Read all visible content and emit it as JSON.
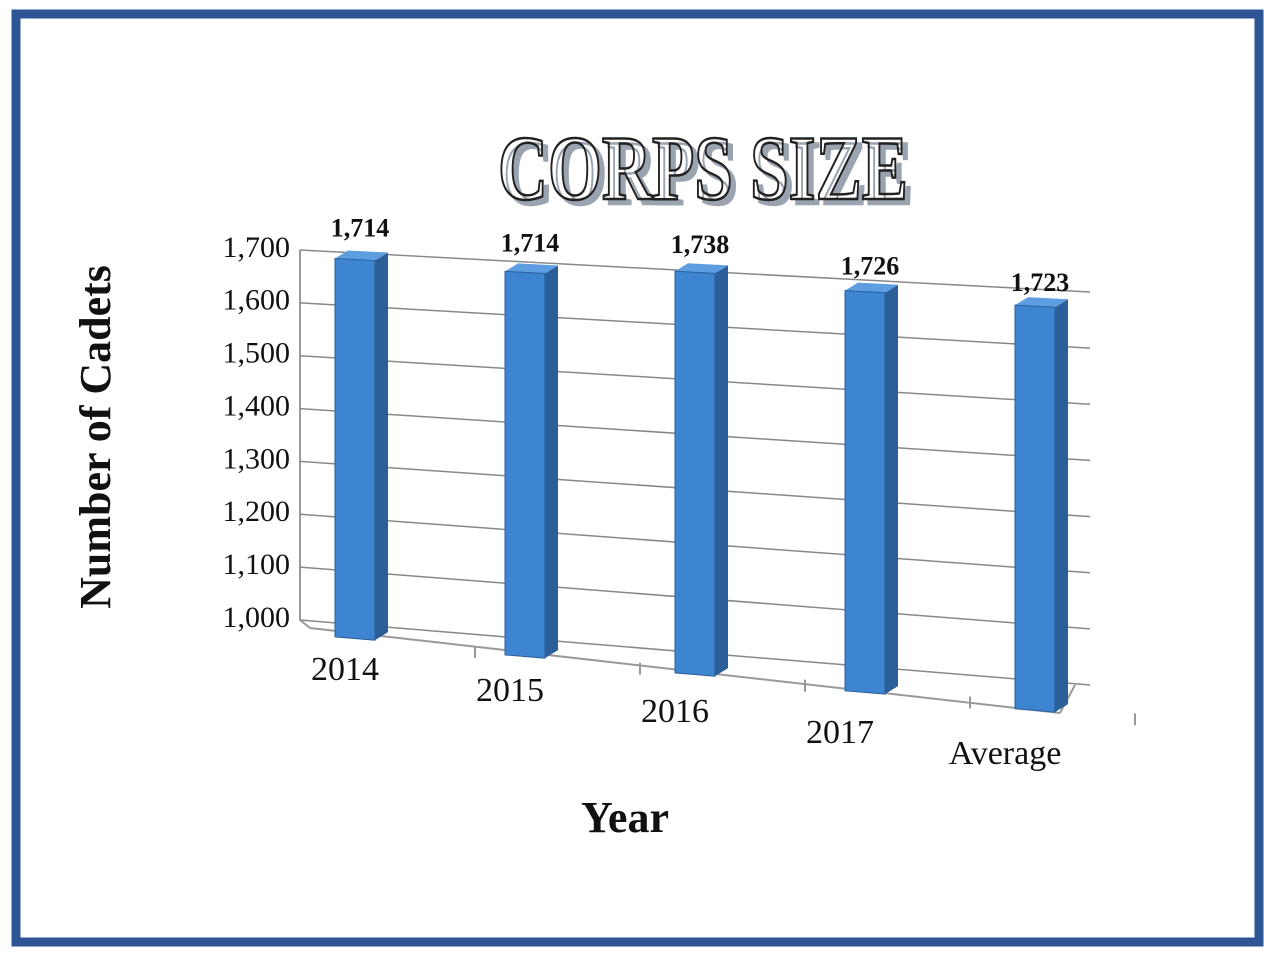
{
  "chart_data": {
    "type": "bar3d",
    "title": "CORPS SIZE",
    "x_label": "Year",
    "y_label": "Number of Cadets",
    "categories": [
      "2014",
      "2015",
      "2016",
      "2017",
      "Average"
    ],
    "values": [
      1714,
      1714,
      1738,
      1726,
      1723
    ],
    "value_labels": [
      "1,714",
      "1,714",
      "1,738",
      "1,726",
      "1,723"
    ],
    "color": "#3d85d0",
    "ylim": [
      1000,
      1700
    ],
    "yticks": [
      {
        "value": 1000,
        "label": "1,000"
      },
      {
        "value": 1100,
        "label": "1,100"
      },
      {
        "value": 1200,
        "label": "1,200"
      },
      {
        "value": 1300,
        "label": "1,300"
      },
      {
        "value": 1400,
        "label": "1,400"
      },
      {
        "value": 1500,
        "label": "1,500"
      },
      {
        "value": 1600,
        "label": "1,600"
      },
      {
        "value": 1700,
        "label": "1,700"
      }
    ],
    "grid": true
  }
}
